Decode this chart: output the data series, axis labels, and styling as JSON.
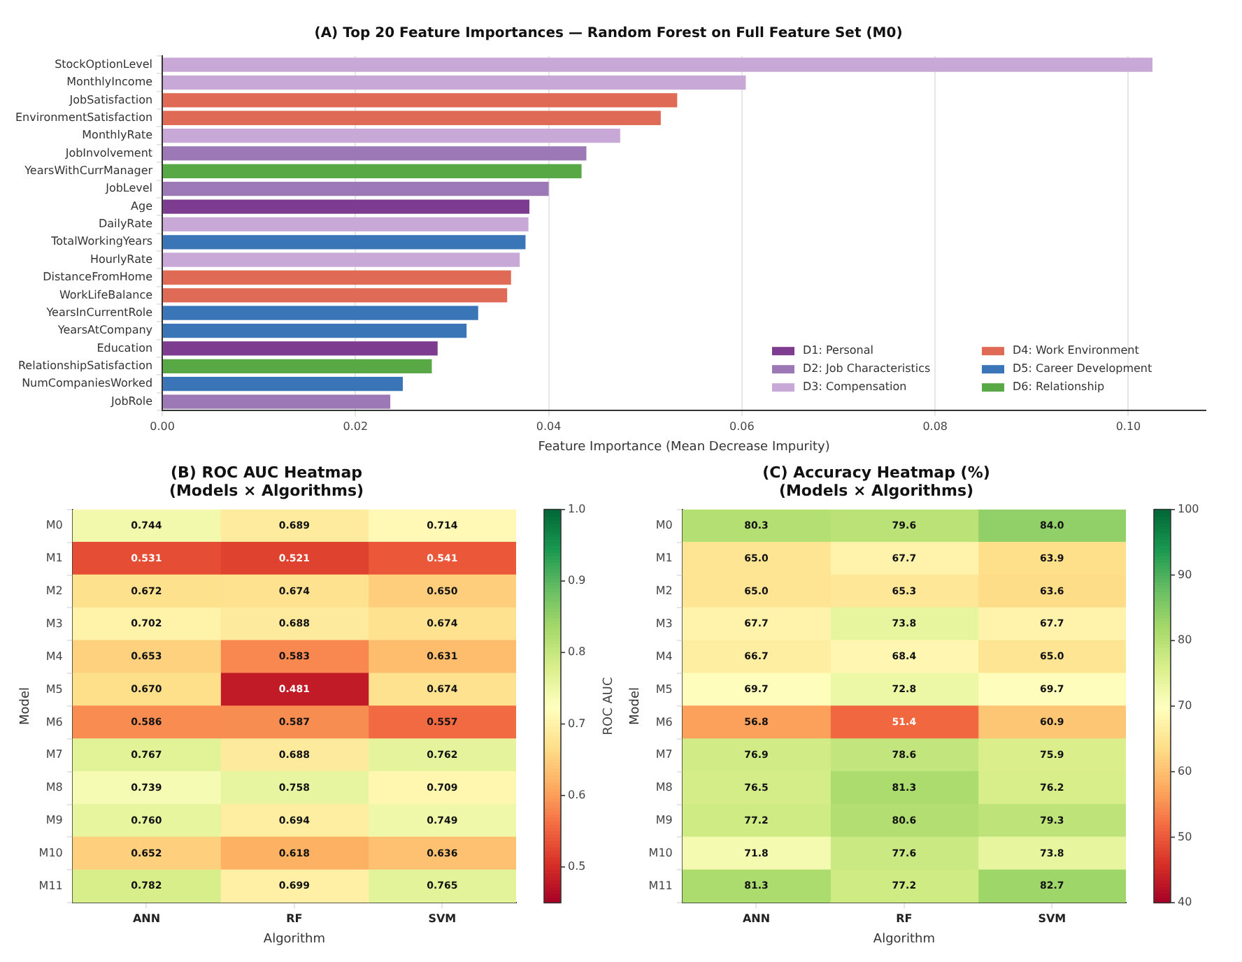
{
  "chart_data": [
    {
      "type": "bar",
      "orientation": "horizontal",
      "title": "(A) Top 20 Feature Importances — Random Forest on Full Feature Set (M0)",
      "xlabel": "Feature Importance (Mean Decrease Impurity)",
      "categories": [
        "StockOptionLevel",
        "MonthlyIncome",
        "JobSatisfaction",
        "EnvironmentSatisfaction",
        "MonthlyRate",
        "JobInvolvement",
        "YearsWithCurrManager",
        "JobLevel",
        "Age",
        "DailyRate",
        "TotalWorkingYears",
        "HourlyRate",
        "DistanceFromHome",
        "WorkLifeBalance",
        "YearsInCurrentRole",
        "YearsAtCompany",
        "Education",
        "RelationshipSatisfaction",
        "NumCompaniesWorked",
        "JobRole"
      ],
      "series": [
        {
          "name": "D1: Personal",
          "color": "#7d3c8f",
          "values": [
            null,
            null,
            null,
            null,
            null,
            null,
            null,
            null,
            0.038,
            null,
            null,
            null,
            null,
            null,
            null,
            null,
            0.0285,
            null,
            null,
            null
          ]
        },
        {
          "name": "D2: Job Characteristics",
          "color": "#9c78b6",
          "values": [
            null,
            null,
            null,
            null,
            null,
            0.0439,
            null,
            0.04,
            null,
            null,
            null,
            null,
            null,
            null,
            null,
            null,
            null,
            null,
            null,
            0.0236
          ]
        },
        {
          "name": "D3: Compensation",
          "color": "#c8a8d6",
          "values": [
            0.1025,
            0.0604,
            null,
            null,
            0.0474,
            null,
            null,
            null,
            null,
            0.0379,
            null,
            0.037,
            null,
            null,
            null,
            null,
            null,
            null,
            null,
            null
          ]
        },
        {
          "name": "D4: Work Environment",
          "color": "#df6a55",
          "values": [
            null,
            null,
            0.0533,
            0.0516,
            null,
            null,
            null,
            null,
            null,
            null,
            null,
            null,
            0.0361,
            0.0357,
            null,
            null,
            null,
            null,
            null,
            null
          ]
        },
        {
          "name": "D5: Career Development",
          "color": "#3a75b7",
          "values": [
            null,
            null,
            null,
            null,
            null,
            null,
            null,
            null,
            null,
            null,
            0.0376,
            null,
            null,
            null,
            0.0327,
            0.0315,
            null,
            null,
            0.0249,
            null
          ]
        },
        {
          "name": "D6: Relationship",
          "color": "#58a846",
          "values": [
            null,
            null,
            null,
            null,
            null,
            null,
            0.0434,
            null,
            null,
            null,
            null,
            null,
            null,
            null,
            null,
            null,
            null,
            0.0279,
            null,
            null
          ]
        }
      ],
      "xlim": [
        0,
        0.108
      ],
      "xticks": [
        {
          "value": 0,
          "label": "0.00"
        },
        0.02,
        0.04,
        0.06,
        0.08,
        {
          "value": 0.1,
          "label": "0.10"
        }
      ],
      "grid": "x",
      "legend": "bottom right"
    },
    {
      "type": "heatmap",
      "title": "(B) ROC AUC Heatmap\n(Models × Algorithms)",
      "xlabel": "Algorithm",
      "ylabel": "Model",
      "clabel": "ROC AUC",
      "categories": [
        "ANN",
        "RF",
        "SVM"
      ],
      "y_categories": [
        "M0",
        "M1",
        "M2",
        "M3",
        "M4",
        "M5",
        "M6",
        "M7",
        "M8",
        "M9",
        "M10",
        "M11"
      ],
      "cells": [
        [
          0.744,
          0.689,
          0.714
        ],
        [
          0.531,
          0.521,
          0.541
        ],
        [
          0.672,
          0.674,
          0.65
        ],
        [
          0.702,
          0.688,
          0.674
        ],
        [
          0.653,
          0.583,
          0.631
        ],
        [
          0.67,
          0.481,
          0.674
        ],
        [
          0.586,
          0.587,
          0.557
        ],
        [
          0.767,
          0.688,
          0.762
        ],
        [
          0.739,
          0.758,
          0.709
        ],
        [
          0.76,
          0.694,
          0.749
        ],
        [
          0.652,
          0.618,
          0.636
        ],
        [
          0.782,
          0.699,
          0.765
        ]
      ],
      "cell_labels": [
        [
          "0.744",
          "0.689",
          "0.714"
        ],
        [
          "0.531",
          "0.521",
          "0.541"
        ],
        [
          "0.672",
          "0.674",
          "0.650"
        ],
        [
          "0.702",
          "0.688",
          "0.674"
        ],
        [
          "0.653",
          "0.583",
          "0.631"
        ],
        [
          "0.670",
          "0.481",
          "0.674"
        ],
        [
          "0.586",
          "0.587",
          "0.557"
        ],
        [
          "0.767",
          "0.688",
          "0.762"
        ],
        [
          "0.739",
          "0.758",
          "0.709"
        ],
        [
          "0.760",
          "0.694",
          "0.749"
        ],
        [
          "0.652",
          "0.618",
          "0.636"
        ],
        [
          "0.782",
          "0.699",
          "0.765"
        ]
      ],
      "clim": [
        0.45,
        1.0
      ],
      "cticks": [
        0.5,
        0.6,
        0.7,
        0.8,
        0.9,
        {
          "value": 1.0,
          "label": "1.0"
        }
      ]
    },
    {
      "type": "heatmap",
      "title": "(C) Accuracy Heatmap (%)\n(Models × Algorithms)",
      "xlabel": "Algorithm",
      "ylabel": "Model",
      "categories": [
        "ANN",
        "RF",
        "SVM"
      ],
      "y_categories": [
        "M0",
        "M1",
        "M2",
        "M3",
        "M4",
        "M5",
        "M6",
        "M7",
        "M8",
        "M9",
        "M10",
        "M11"
      ],
      "cells": [
        [
          80.3,
          79.6,
          84.0
        ],
        [
          65.0,
          67.7,
          63.9
        ],
        [
          65.0,
          65.3,
          63.6
        ],
        [
          67.7,
          73.8,
          67.7
        ],
        [
          66.7,
          68.4,
          65.0
        ],
        [
          69.7,
          72.8,
          69.7
        ],
        [
          56.8,
          51.4,
          60.9
        ],
        [
          76.9,
          78.6,
          75.9
        ],
        [
          76.5,
          81.3,
          76.2
        ],
        [
          77.2,
          80.6,
          79.3
        ],
        [
          71.8,
          77.6,
          73.8
        ],
        [
          81.3,
          77.2,
          82.7
        ]
      ],
      "cell_labels": [
        [
          "80.3",
          "79.6",
          "84.0"
        ],
        [
          "65.0",
          "67.7",
          "63.9"
        ],
        [
          "65.0",
          "65.3",
          "63.6"
        ],
        [
          "67.7",
          "73.8",
          "67.7"
        ],
        [
          "66.7",
          "68.4",
          "65.0"
        ],
        [
          "69.7",
          "72.8",
          "69.7"
        ],
        [
          "56.8",
          "51.4",
          "60.9"
        ],
        [
          "76.9",
          "78.6",
          "75.9"
        ],
        [
          "76.5",
          "81.3",
          "76.2"
        ],
        [
          "77.2",
          "80.6",
          "79.3"
        ],
        [
          "71.8",
          "77.6",
          "73.8"
        ],
        [
          "81.3",
          "77.2",
          "82.7"
        ]
      ],
      "clim": [
        40,
        100
      ],
      "cticks": [
        40,
        50,
        60,
        70,
        80,
        90,
        100
      ]
    }
  ]
}
